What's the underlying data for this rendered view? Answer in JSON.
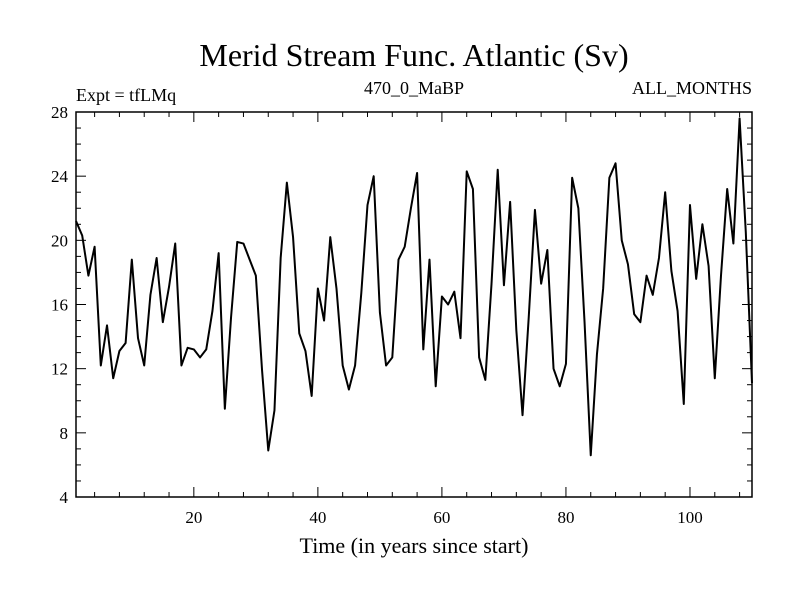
{
  "chart_data": {
    "type": "line",
    "title": "Merid Stream Func. Atlantic (Sv)",
    "subtitle_left": "Expt = tfLMq",
    "subtitle_center": "470_0_MaBP",
    "subtitle_right": "ALL_MONTHS",
    "xlabel": "Time (in years since start)",
    "ylabel": "",
    "xlim": [
      1,
      110
    ],
    "ylim": [
      4,
      28
    ],
    "xticks": [
      20,
      40,
      60,
      80,
      100
    ],
    "yticks": [
      4,
      8,
      12,
      16,
      20,
      24,
      28
    ],
    "grid": false,
    "series": [
      {
        "name": "Merid Stream Func. Atlantic",
        "color": "#000000",
        "x": [
          1,
          2,
          3,
          4,
          5,
          6,
          7,
          8,
          9,
          10,
          11,
          12,
          13,
          14,
          15,
          16,
          17,
          18,
          19,
          20,
          21,
          22,
          23,
          24,
          25,
          26,
          27,
          28,
          29,
          30,
          31,
          32,
          33,
          34,
          35,
          36,
          37,
          38,
          39,
          40,
          41,
          42,
          43,
          44,
          45,
          46,
          47,
          48,
          49,
          50,
          51,
          52,
          53,
          54,
          55,
          56,
          57,
          58,
          59,
          60,
          61,
          62,
          63,
          64,
          65,
          66,
          67,
          68,
          69,
          70,
          71,
          72,
          73,
          74,
          75,
          76,
          77,
          78,
          79,
          80,
          81,
          82,
          83,
          84,
          85,
          86,
          87,
          88,
          89,
          90,
          91,
          92,
          93,
          94,
          95,
          96,
          97,
          98,
          99,
          100,
          101,
          102,
          103,
          104,
          105,
          106,
          107,
          108,
          109,
          110
        ],
        "values": [
          21.2,
          20.3,
          17.8,
          19.6,
          12.2,
          14.7,
          11.4,
          13.1,
          13.6,
          18.8,
          13.9,
          12.2,
          16.6,
          18.9,
          14.9,
          17.1,
          19.8,
          12.2,
          13.3,
          13.2,
          12.7,
          13.2,
          15.6,
          19.2,
          9.5,
          15.2,
          19.9,
          19.8,
          18.8,
          17.8,
          11.9,
          6.9,
          9.4,
          18.9,
          23.6,
          20.2,
          14.2,
          13.1,
          10.3,
          17.0,
          15.0,
          20.2,
          17.0,
          12.2,
          10.7,
          12.2,
          16.7,
          22.2,
          24.0,
          15.5,
          12.2,
          12.7,
          18.8,
          19.6,
          22.0,
          24.2,
          13.2,
          18.8,
          10.9,
          16.5,
          16.0,
          16.8,
          13.9,
          24.3,
          23.2,
          12.7,
          11.3,
          17.3,
          24.4,
          17.2,
          22.4,
          14.4,
          9.1,
          15.2,
          21.9,
          17.3,
          19.4,
          12.0,
          10.9,
          12.3,
          23.9,
          22.0,
          14.9,
          6.6,
          12.9,
          17.0,
          23.9,
          24.8,
          20.0,
          18.5,
          15.4,
          14.9,
          17.8,
          16.6,
          18.9,
          23.0,
          18.1,
          15.6,
          9.8,
          22.2,
          17.6,
          21.0,
          18.4,
          11.4,
          17.8,
          23.2,
          19.8,
          27.6,
          20.5,
          11.1
        ]
      }
    ]
  }
}
